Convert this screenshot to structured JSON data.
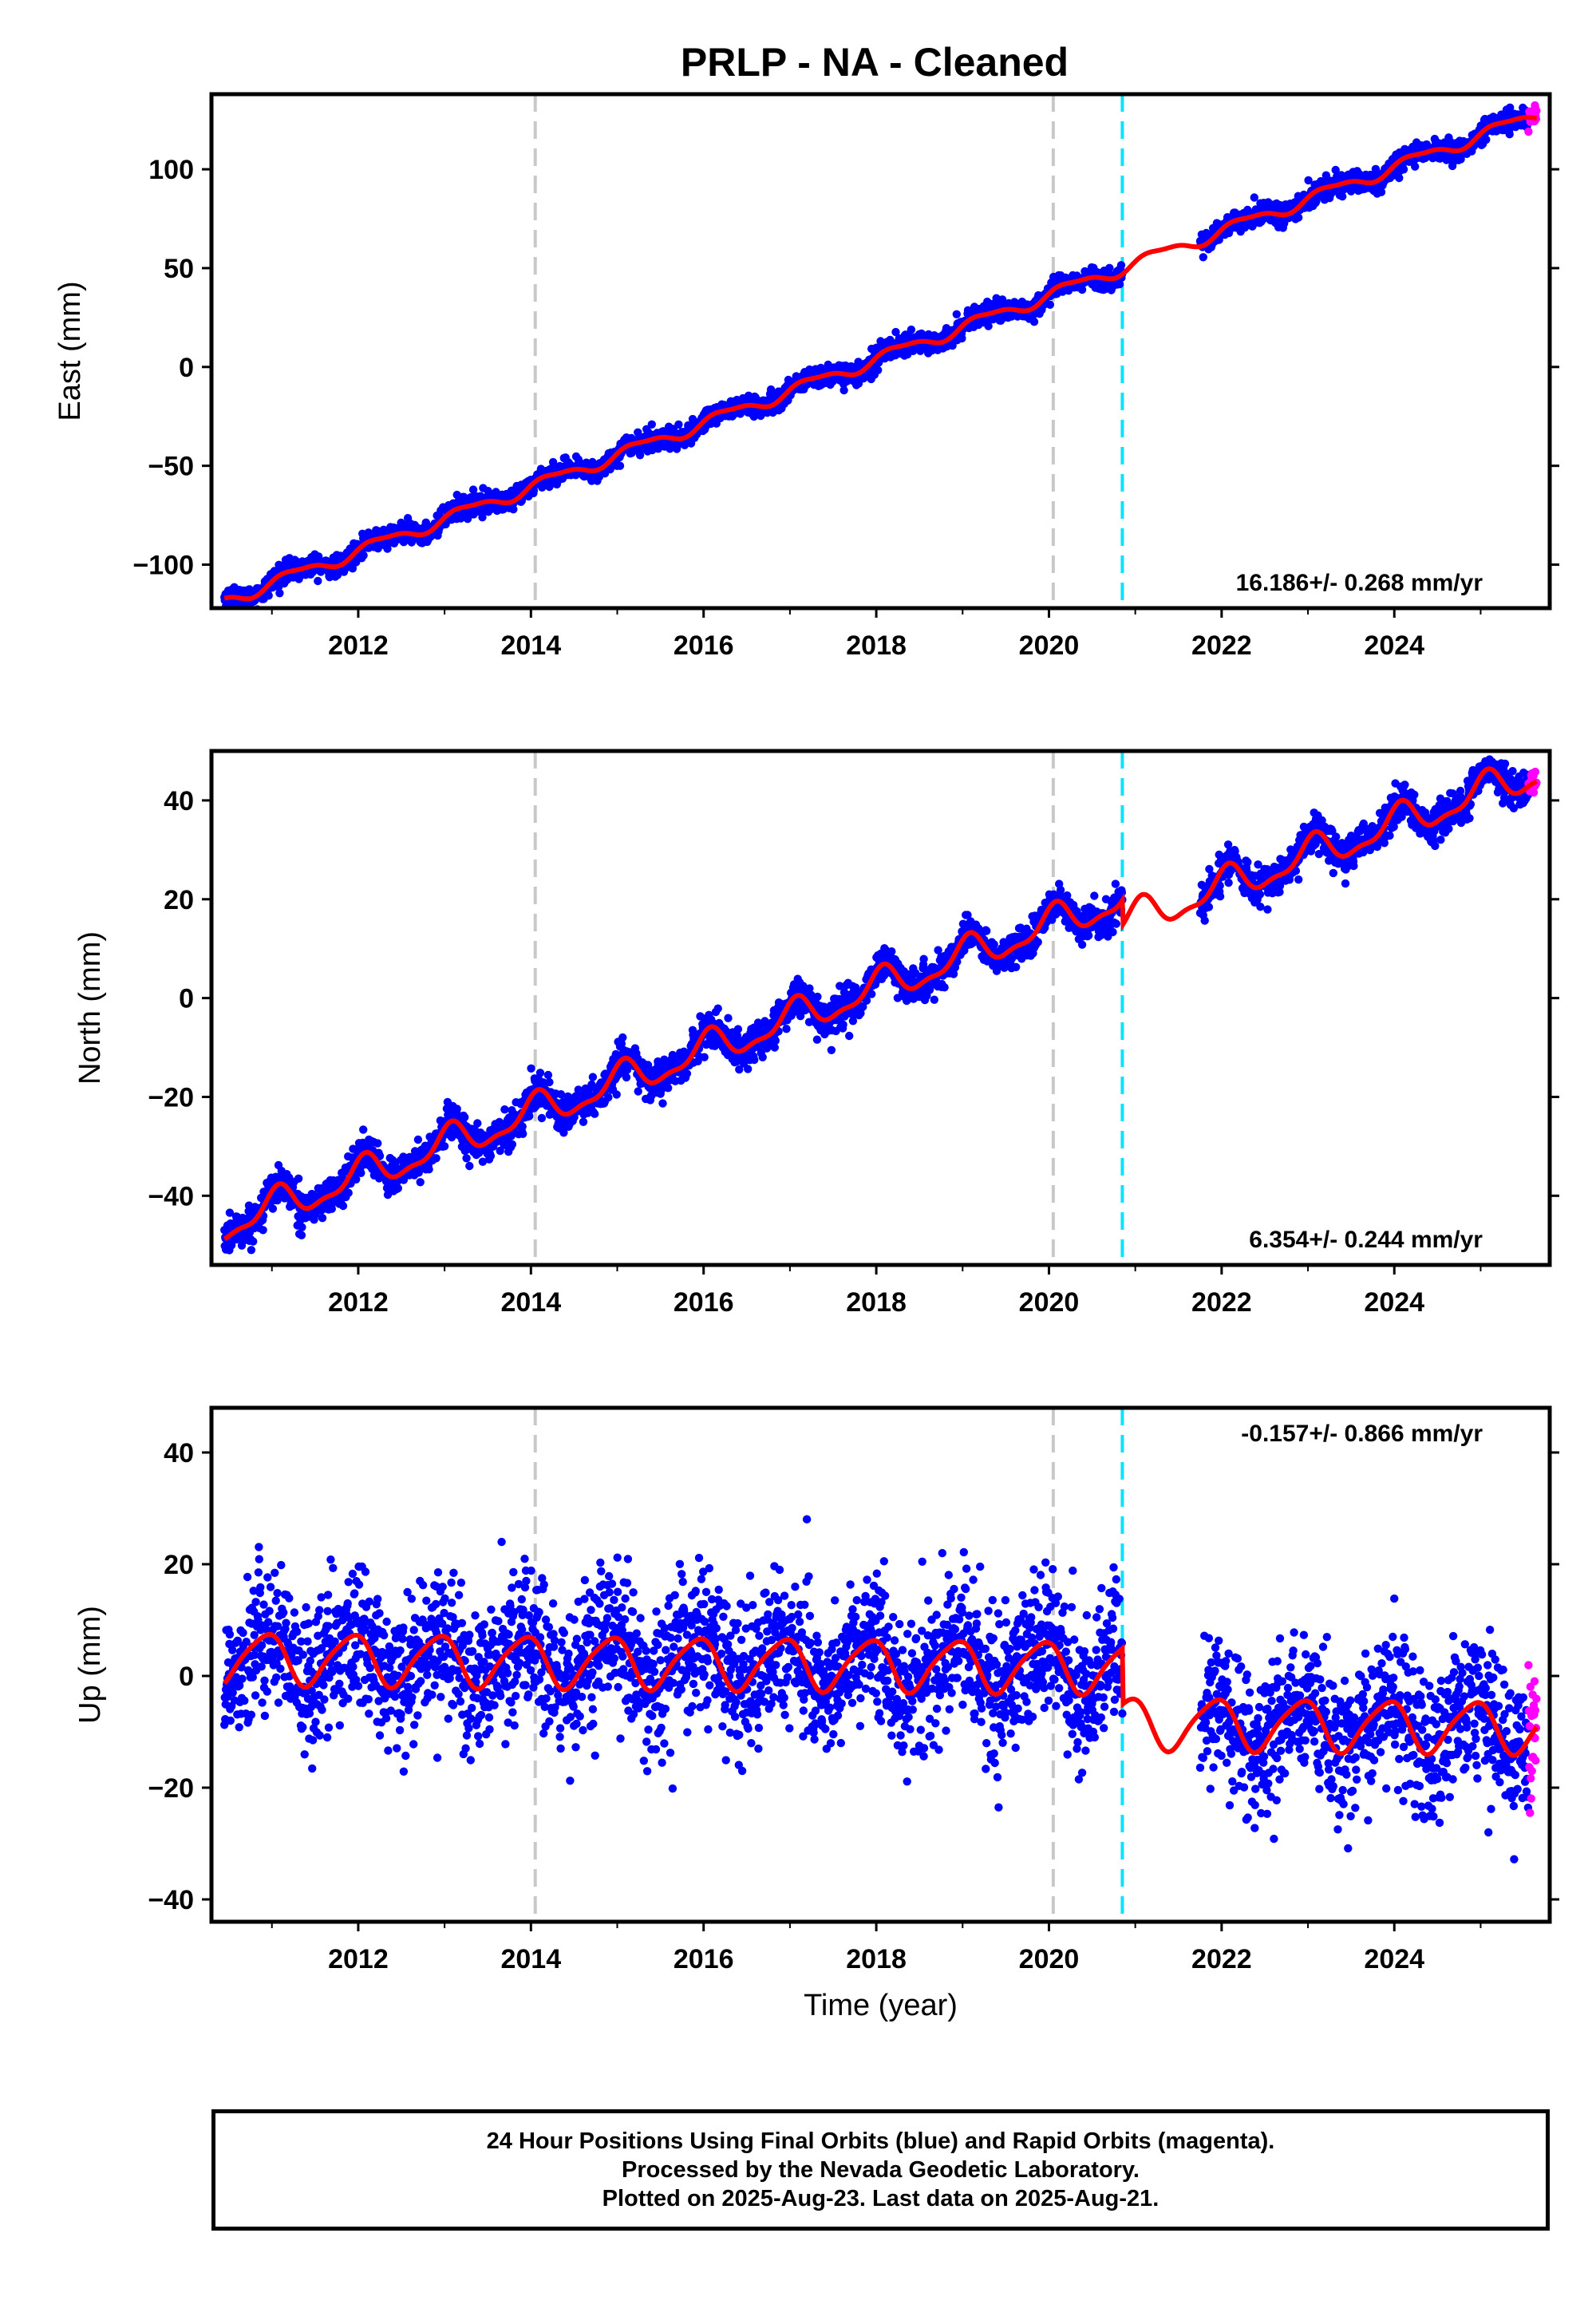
{
  "title": "PRLP  - NA - Cleaned",
  "footer": {
    "line1": "24 Hour Positions Using Final Orbits (blue) and Rapid Orbits (magenta).",
    "line2": "Processed by the Nevada Geodetic Laboratory.",
    "line3": "Plotted on 2025-Aug-23. Last data on 2025-Aug-21."
  },
  "colors": {
    "final_orbits": "#0000ff",
    "rapid_orbits": "#ff00ff",
    "model_fit": "#ff0000",
    "antenna_change": "#c8c8c8",
    "earthquake": "#00e5ff"
  },
  "chart_data": [
    {
      "type": "scatter",
      "component": "east",
      "ylabel": "East (mm)",
      "xlabel": "",
      "xlim": [
        2010.3,
        2025.8
      ],
      "ylim": [
        -122,
        138
      ],
      "xticks": [
        2012,
        2014,
        2016,
        2018,
        2020,
        2022,
        2024
      ],
      "yticks": [
        -100,
        -50,
        0,
        50,
        100
      ],
      "ytick_labels": [
        "−100",
        "−50",
        "0",
        "50",
        "100"
      ],
      "rate": "16.186+/- 0.268 mm/yr",
      "rate_position": "bottom-right",
      "vlines_gray": [
        2014.05,
        2020.05
      ],
      "vlines_cyan": [
        2020.85
      ],
      "data_gap": [
        2020.85,
        2021.75
      ],
      "start_year": 2010.45,
      "end_year": 2025.65,
      "rapid_start": 2025.55,
      "trend": {
        "ref_year": 2018.0,
        "ref_value": 4.0,
        "rate": 16.186
      },
      "seasonal": {
        "amp1": 3.0,
        "phase1": 0.0,
        "amp2": 1.0,
        "phase2": 0.9
      },
      "noise_sd": 2.6,
      "offsets": []
    },
    {
      "type": "scatter",
      "component": "north",
      "ylabel": "North (mm)",
      "xlabel": "",
      "xlim": [
        2010.3,
        2025.8
      ],
      "ylim": [
        -54,
        50
      ],
      "xticks": [
        2012,
        2014,
        2016,
        2018,
        2020,
        2022,
        2024
      ],
      "yticks": [
        -40,
        -20,
        0,
        20,
        40
      ],
      "ytick_labels": [
        "−40",
        "−20",
        "0",
        "20",
        "40"
      ],
      "rate": "6.354+/- 0.244 mm/yr",
      "rate_position": "bottom-right",
      "vlines_gray": [
        2014.05,
        2020.05
      ],
      "vlines_cyan": [
        2020.85
      ],
      "data_gap": [
        2020.85,
        2021.75
      ],
      "start_year": 2010.45,
      "end_year": 2025.65,
      "rapid_start": 2025.55,
      "trend": {
        "ref_year": 2018.0,
        "ref_value": 2.0,
        "rate": 6.354
      },
      "seasonal": {
        "amp1": 3.2,
        "phase1": 1.2,
        "amp2": 1.2,
        "phase2": 0.4
      },
      "noise_sd": 1.8,
      "offsets": [
        {
          "year": 2020.85,
          "value": -5.0
        }
      ]
    },
    {
      "type": "scatter",
      "component": "up",
      "ylabel": "Up (mm)",
      "xlabel": "Time (year)",
      "xlim": [
        2010.3,
        2025.8
      ],
      "ylim": [
        -44,
        48
      ],
      "xticks": [
        2012,
        2014,
        2016,
        2018,
        2020,
        2022,
        2024
      ],
      "yticks": [
        -40,
        -20,
        0,
        20,
        40
      ],
      "ytick_labels": [
        "−40",
        "−20",
        "0",
        "20",
        "40"
      ],
      "rate": "-0.157+/- 0.866 mm/yr",
      "rate_position": "top-right",
      "vlines_gray": [
        2014.05,
        2020.05
      ],
      "vlines_cyan": [
        2020.85
      ],
      "data_gap": [
        2020.85,
        2021.75
      ],
      "start_year": 2010.45,
      "end_year": 2025.65,
      "rapid_start": 2025.55,
      "trend": {
        "ref_year": 2018.0,
        "ref_value": 2.0,
        "rate": -0.157
      },
      "seasonal": {
        "amp1": 4.5,
        "phase1": 2.1,
        "amp2": 0.8,
        "phase2": 0.5
      },
      "noise_sd": 6.5,
      "offsets": [
        {
          "year": 2020.85,
          "value": -10.0
        }
      ]
    }
  ]
}
